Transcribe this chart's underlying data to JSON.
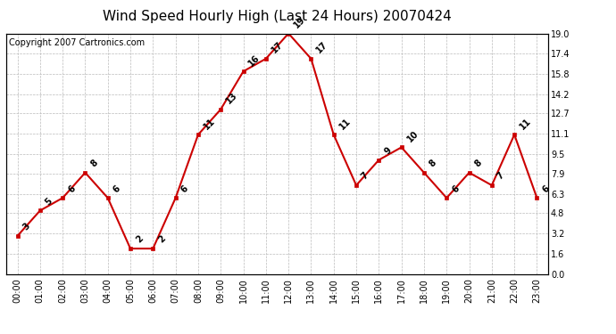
{
  "title": "Wind Speed Hourly High (Last 24 Hours) 20070424",
  "copyright": "Copyright 2007 Cartronics.com",
  "hours": [
    "00:00",
    "01:00",
    "02:00",
    "03:00",
    "04:00",
    "05:00",
    "06:00",
    "07:00",
    "08:00",
    "09:00",
    "10:00",
    "11:00",
    "12:00",
    "13:00",
    "14:00",
    "15:00",
    "16:00",
    "17:00",
    "18:00",
    "19:00",
    "20:00",
    "21:00",
    "22:00",
    "23:00"
  ],
  "values": [
    3,
    5,
    6,
    8,
    6,
    2,
    2,
    6,
    11,
    13,
    16,
    17,
    19,
    17,
    11,
    7,
    9,
    10,
    8,
    6,
    8,
    7,
    11,
    6
  ],
  "ylim": [
    0.0,
    19.0
  ],
  "yticks": [
    0.0,
    1.6,
    3.2,
    4.8,
    6.3,
    7.9,
    9.5,
    11.1,
    12.7,
    14.2,
    15.8,
    17.4,
    19.0
  ],
  "line_color": "#cc0000",
  "marker_color": "#cc0000",
  "bg_color": "#ffffff",
  "grid_color": "#bbbbbb",
  "title_fontsize": 11,
  "label_fontsize": 7,
  "annotation_fontsize": 7,
  "copyright_fontsize": 7
}
